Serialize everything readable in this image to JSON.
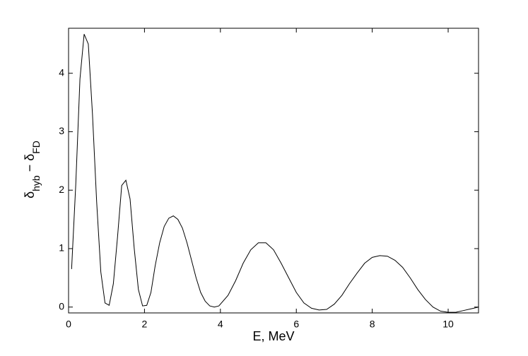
{
  "chart_data": {
    "type": "line",
    "xlabel": "E, MeV",
    "ylabel": [
      "δ",
      "hyb",
      " − δ",
      "FD"
    ],
    "x": [
      0.08,
      0.19,
      0.3,
      0.41,
      0.52,
      0.63,
      0.74,
      0.85,
      0.96,
      1.07,
      1.18,
      1.29,
      1.4,
      1.51,
      1.62,
      1.73,
      1.84,
      1.95,
      2.06,
      2.17,
      2.28,
      2.4,
      2.52,
      2.64,
      2.76,
      2.88,
      3.0,
      3.12,
      3.24,
      3.36,
      3.48,
      3.6,
      3.72,
      3.84,
      3.96,
      4.2,
      4.4,
      4.6,
      4.8,
      5.0,
      5.2,
      5.4,
      5.6,
      5.8,
      6.0,
      6.2,
      6.4,
      6.6,
      6.8,
      7.0,
      7.2,
      7.4,
      7.6,
      7.8,
      8.0,
      8.2,
      8.4,
      8.6,
      8.8,
      9.0,
      9.2,
      9.4,
      9.6,
      9.8,
      10.0,
      10.2,
      10.4,
      10.6,
      10.8
    ],
    "series": [
      {
        "color": "#000000",
        "values": [
          0.65,
          2.1,
          3.9,
          4.67,
          4.5,
          3.3,
          1.8,
          0.6,
          0.07,
          0.03,
          0.4,
          1.2,
          2.08,
          2.17,
          1.85,
          1.0,
          0.3,
          0.02,
          0.03,
          0.25,
          0.7,
          1.1,
          1.38,
          1.52,
          1.56,
          1.5,
          1.35,
          1.1,
          0.8,
          0.5,
          0.25,
          0.1,
          0.02,
          0.0,
          0.02,
          0.2,
          0.45,
          0.75,
          0.98,
          1.1,
          1.1,
          0.98,
          0.75,
          0.5,
          0.25,
          0.07,
          -0.02,
          -0.05,
          -0.04,
          0.05,
          0.2,
          0.4,
          0.58,
          0.75,
          0.85,
          0.88,
          0.87,
          0.8,
          0.68,
          0.5,
          0.3,
          0.13,
          0.0,
          -0.07,
          -0.09,
          -0.09,
          -0.06,
          -0.03,
          0.0
        ]
      }
    ],
    "xlim": [
      0,
      10.8
    ],
    "xticks": [
      0,
      2,
      4,
      6,
      8,
      10
    ],
    "ylim": [
      -0.1,
      4.77
    ],
    "yticks": [
      0,
      1,
      2,
      3,
      4
    ]
  }
}
